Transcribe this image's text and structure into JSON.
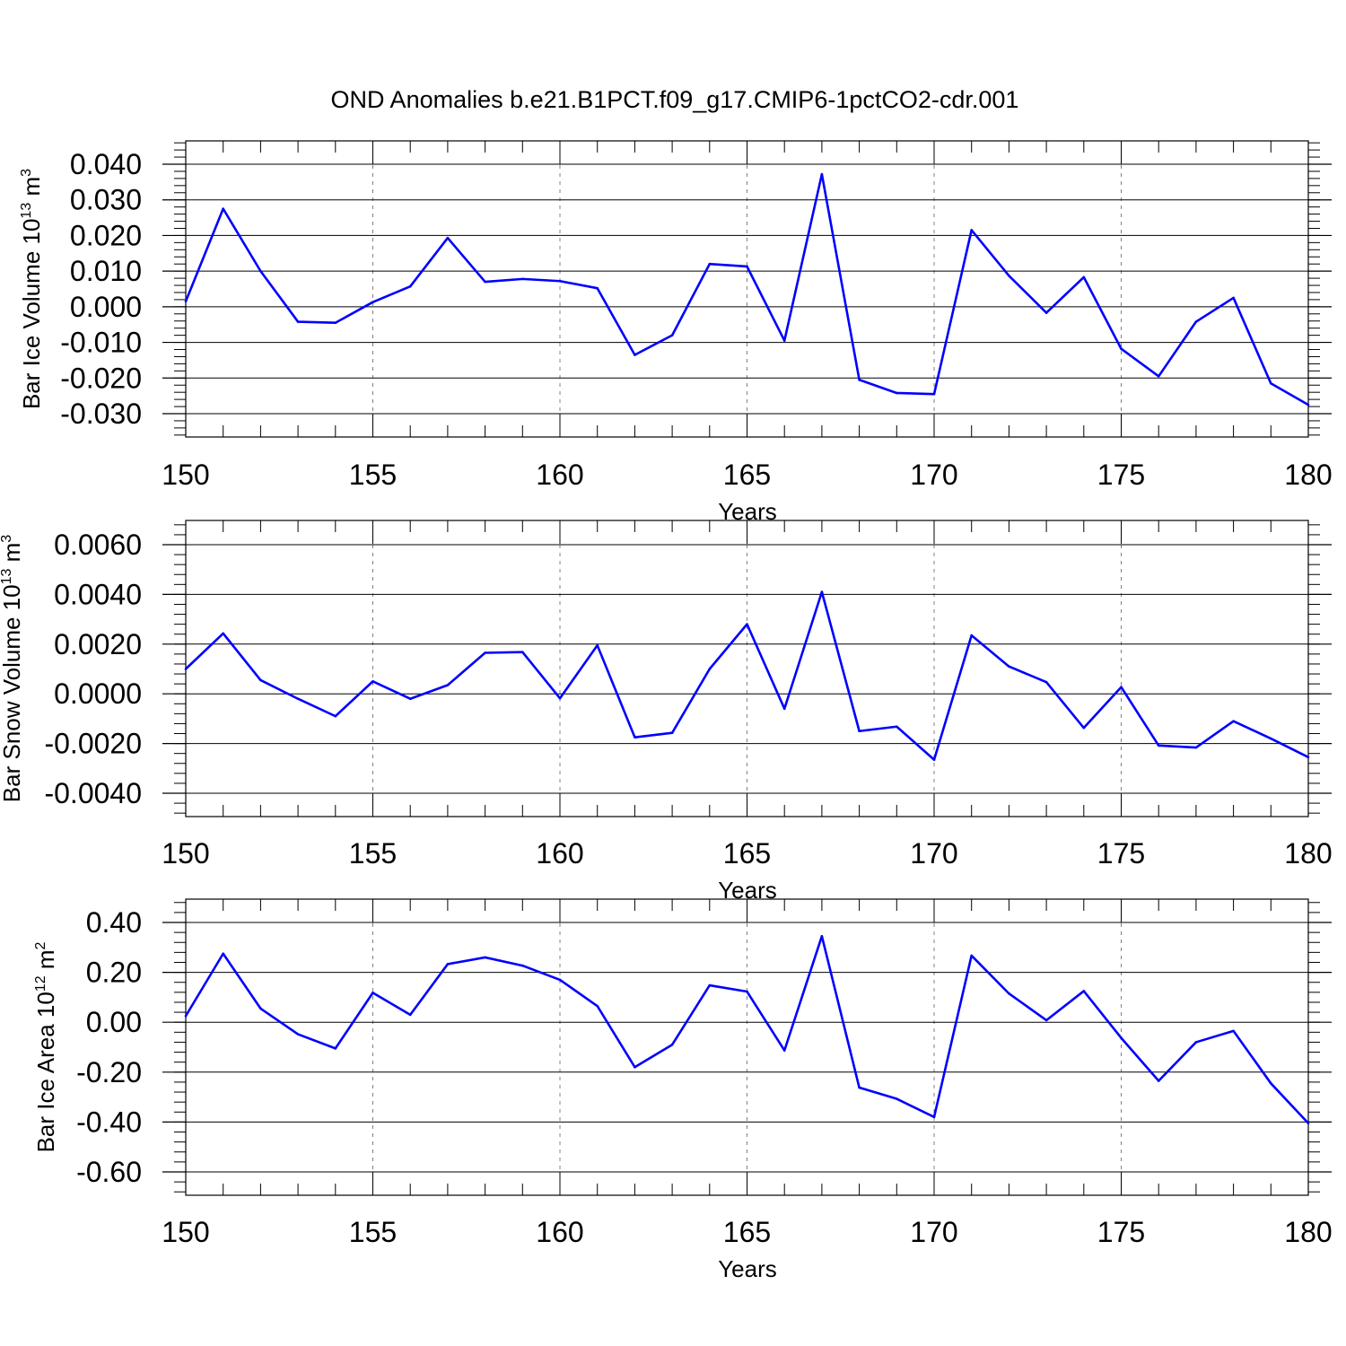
{
  "title": "OND Anomalies b.e21.B1PCT.f09_g17.CMIP6-1pctCO2-cdr.001",
  "colors": {
    "line": "#0000ff",
    "axis": "#000000",
    "grid": "#808080"
  },
  "chart_data": [
    {
      "type": "line",
      "title": "",
      "xlabel": "Years",
      "ylabel": {
        "prefix": "Bar Ice Volume 10",
        "exp": "13",
        "unit": " m",
        "unit_exp": "3"
      },
      "xlim": [
        150,
        180
      ],
      "ylim": [
        -0.03,
        0.04
      ],
      "xticks": [
        150,
        155,
        160,
        165,
        170,
        175,
        180
      ],
      "xtick_labels": [
        "150",
        "155",
        "160",
        "165",
        "170",
        "175",
        "180"
      ],
      "yticks": [
        -0.03,
        -0.02,
        -0.01,
        0.0,
        0.01,
        0.02,
        0.03,
        0.04
      ],
      "ytick_labels": [
        "-0.030",
        "-0.020",
        "-0.010",
        "0.000",
        "0.010",
        "0.020",
        "0.030",
        "0.040"
      ],
      "grid": "vertical dashed at major x ticks",
      "x": [
        150,
        151,
        152,
        153,
        154,
        155,
        156,
        157,
        158,
        159,
        160,
        161,
        162,
        163,
        164,
        165,
        166,
        167,
        168,
        169,
        170,
        171,
        172,
        173,
        174,
        175,
        176,
        177,
        178,
        179,
        180
      ],
      "series": [
        {
          "values": [
            0.0015,
            0.0275,
            0.01,
            -0.0042,
            -0.0045,
            0.0013,
            0.0057,
            0.0193,
            0.007,
            0.0078,
            0.0072,
            0.0052,
            -0.0135,
            -0.008,
            0.012,
            0.0113,
            -0.0095,
            0.0372,
            -0.0205,
            -0.0242,
            -0.0245,
            0.0215,
            0.0087,
            -0.0017,
            0.0083,
            -0.0118,
            -0.0195,
            -0.0042,
            0.0025,
            -0.0215,
            -0.0275
          ]
        }
      ]
    },
    {
      "type": "line",
      "title": "",
      "xlabel": "Years",
      "ylabel": {
        "prefix": "Bar Snow Volume 10",
        "exp": "13",
        "unit": " m",
        "unit_exp": "3"
      },
      "xlim": [
        150,
        180
      ],
      "ylim": [
        -0.004,
        0.006
      ],
      "xticks": [
        150,
        155,
        160,
        165,
        170,
        175,
        180
      ],
      "xtick_labels": [
        "150",
        "155",
        "160",
        "165",
        "170",
        "175",
        "180"
      ],
      "yticks": [
        -0.004,
        -0.002,
        0.0,
        0.002,
        0.004,
        0.006
      ],
      "ytick_labels": [
        "-0.0040",
        "-0.0020",
        "0.0000",
        "0.0020",
        "0.0040",
        "0.0060"
      ],
      "grid": "vertical dashed at major x ticks",
      "x": [
        150,
        151,
        152,
        153,
        154,
        155,
        156,
        157,
        158,
        159,
        160,
        161,
        162,
        163,
        164,
        165,
        166,
        167,
        168,
        169,
        170,
        171,
        172,
        173,
        174,
        175,
        176,
        177,
        178,
        179,
        180
      ],
      "series": [
        {
          "values": [
            0.001,
            0.00243,
            0.00055,
            -0.0002,
            -0.0009,
            0.0005,
            -0.0002,
            0.00035,
            0.00165,
            0.00168,
            -0.00018,
            0.00195,
            -0.00175,
            -0.00157,
            0.001,
            0.0028,
            -0.0006,
            0.0041,
            -0.0015,
            -0.00132,
            -0.00265,
            0.00235,
            0.0011,
            0.00047,
            -0.00137,
            0.00027,
            -0.00208,
            -0.00216,
            -0.0011,
            -0.0018,
            -0.00255
          ]
        }
      ]
    },
    {
      "type": "line",
      "title": "",
      "xlabel": "Years",
      "ylabel": {
        "prefix": "Bar Ice Area 10",
        "exp": "12",
        "unit": " m",
        "unit_exp": "2"
      },
      "xlim": [
        150,
        180
      ],
      "ylim": [
        -0.6,
        0.4
      ],
      "xticks": [
        150,
        155,
        160,
        165,
        170,
        175,
        180
      ],
      "xtick_labels": [
        "150",
        "155",
        "160",
        "165",
        "170",
        "175",
        "180"
      ],
      "yticks": [
        -0.6,
        -0.4,
        -0.2,
        0.0,
        0.2,
        0.4
      ],
      "ytick_labels": [
        "-0.60",
        "-0.40",
        "-0.20",
        "0.00",
        "0.20",
        "0.40"
      ],
      "grid": "vertical dashed at major x ticks",
      "x": [
        150,
        151,
        152,
        153,
        154,
        155,
        156,
        157,
        158,
        159,
        160,
        161,
        162,
        163,
        164,
        165,
        166,
        167,
        168,
        169,
        170,
        171,
        172,
        173,
        174,
        175,
        176,
        177,
        178,
        179,
        180
      ],
      "series": [
        {
          "values": [
            0.025,
            0.275,
            0.055,
            -0.048,
            -0.105,
            0.118,
            0.03,
            0.233,
            0.26,
            0.227,
            0.17,
            0.065,
            -0.18,
            -0.09,
            0.148,
            0.123,
            -0.113,
            0.345,
            -0.262,
            -0.307,
            -0.38,
            0.267,
            0.115,
            0.008,
            0.125,
            -0.063,
            -0.235,
            -0.08,
            -0.035,
            -0.245,
            -0.405
          ]
        }
      ]
    }
  ]
}
